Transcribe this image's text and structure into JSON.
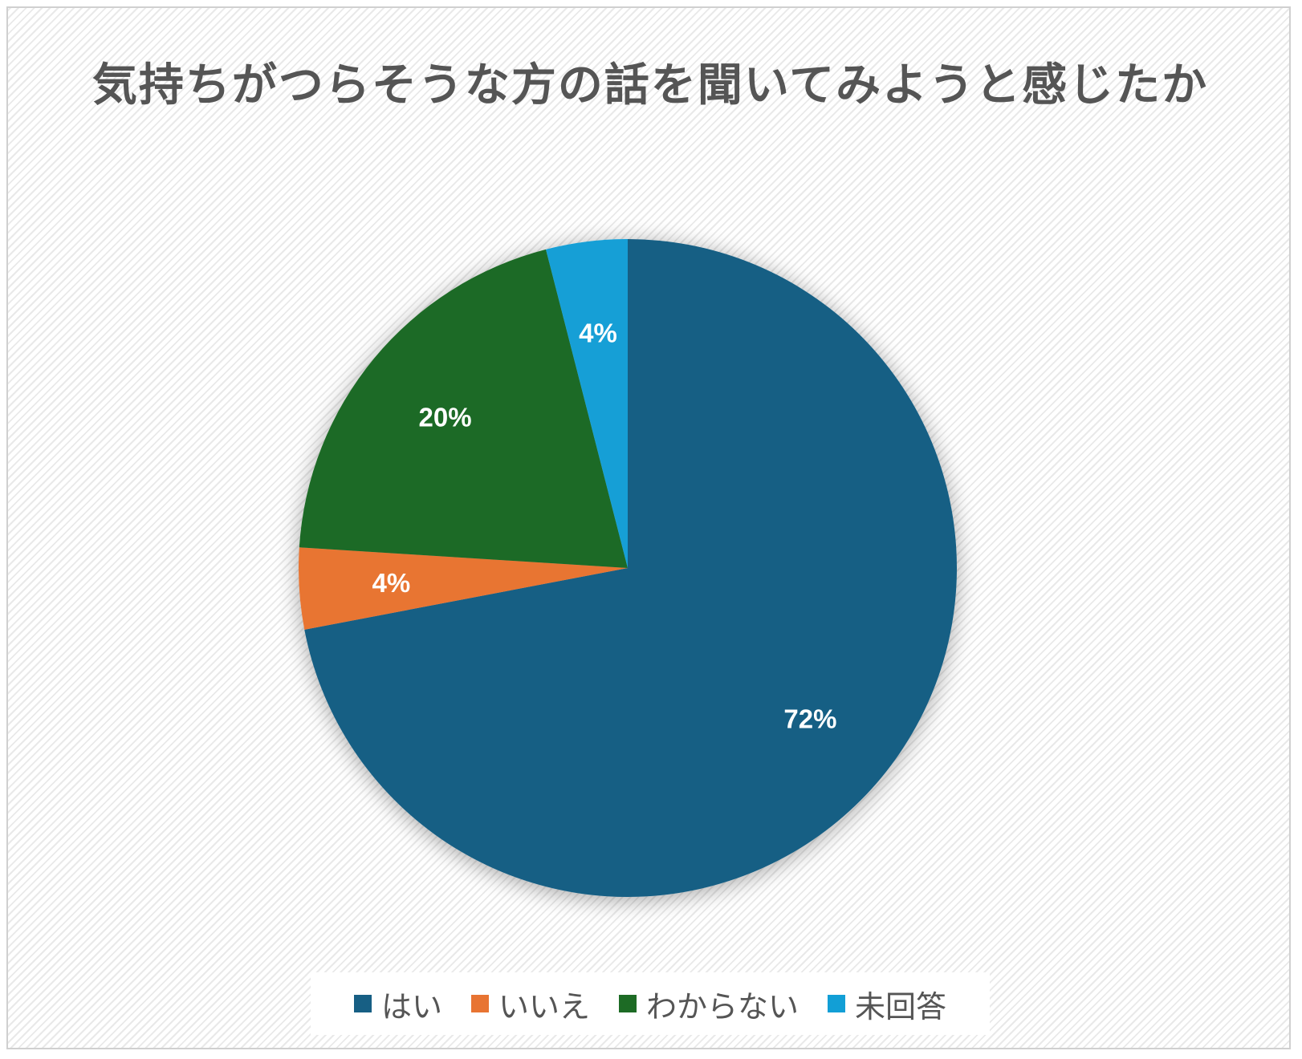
{
  "chart_data": {
    "type": "pie",
    "title": "気持ちがつらそうな方の話を聞いてみようと感じたか",
    "start_angle_deg": 0,
    "direction": "clockwise",
    "legend_position": "bottom",
    "slices": [
      {
        "label": "はい",
        "value": 72,
        "display": "72%",
        "color": "#175f84"
      },
      {
        "label": "いいえ",
        "value": 4,
        "display": "4%",
        "color": "#e87432"
      },
      {
        "label": "わからない",
        "value": 20,
        "display": "20%",
        "color": "#1d6b25"
      },
      {
        "label": "未回答",
        "value": 4,
        "display": "4%",
        "color": "#129fd6"
      }
    ]
  }
}
